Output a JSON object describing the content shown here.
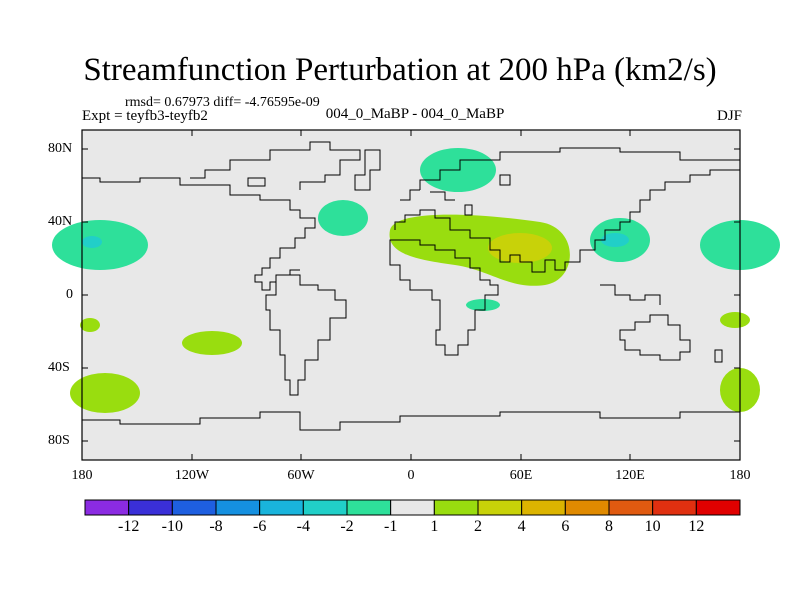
{
  "title": "Streamfunction Perturbation at 200 hPa (km2/s)",
  "stats": "rmsd= 0.67973 diff= -4.76595e-09",
  "expt": "Expt = teyfb3-teyfb2",
  "subtitle": "004_0_MaBP - 004_0_MaBP",
  "season": "DJF",
  "y_ticks": [
    "80N",
    "40N",
    "0",
    "40S",
    "80S"
  ],
  "x_ticks": [
    "180",
    "120W",
    "60W",
    "0",
    "60E",
    "120E",
    "180"
  ],
  "colorbar": {
    "colors": [
      "#8b2be2",
      "#3a2fd8",
      "#1e5fe0",
      "#1590e0",
      "#19b4dc",
      "#21cfc8",
      "#2ee09a",
      "#e8e8e8",
      "#99dd0f",
      "#c8d209",
      "#dcb400",
      "#e08a00",
      "#e05a10",
      "#e03010",
      "#e00000"
    ],
    "labels": [
      "-12",
      "-10",
      "-8",
      "-6",
      "-4",
      "-2",
      "-1",
      "1",
      "2",
      "4",
      "6",
      "8",
      "10",
      "12"
    ]
  },
  "colors": {
    "ocean": "#e8e8e8",
    "pos1": "#99dd0f",
    "pos2": "#c8d209",
    "neg1": "#2ee09a",
    "neg2": "#21cfc8"
  }
}
